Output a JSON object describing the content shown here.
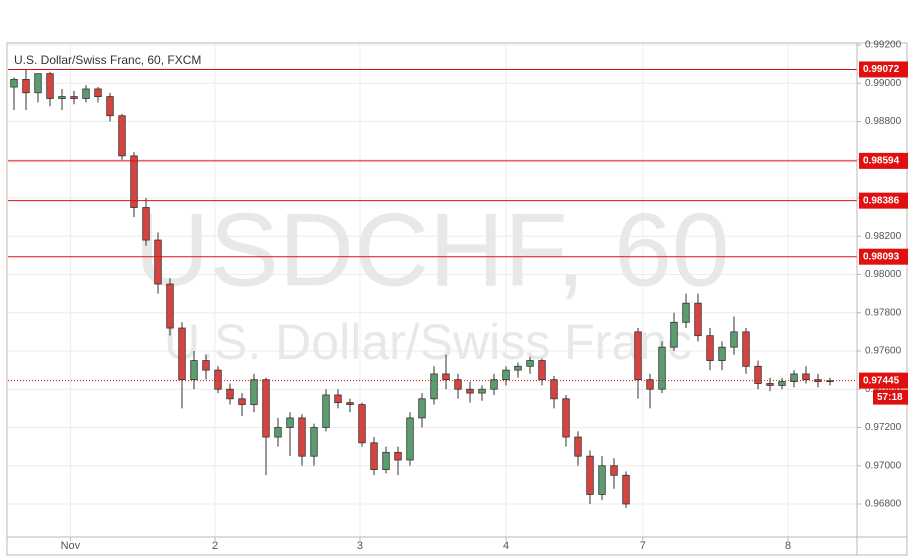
{
  "chart_data": {
    "type": "candlestick",
    "title": "U.S. Dollar/Swiss Franc, 60, FXCM",
    "watermark_symbol": "USDCHF, 60",
    "watermark_name": "U.S. Dollar/Swiss Franc",
    "up_color": "#5a9e70",
    "down_color": "#d9433f",
    "level_color": "#e01010",
    "grid": true,
    "ylim": [
      0.96617,
      0.99205
    ],
    "yticks": [
      {
        "value": 0.992,
        "label": "0.99200"
      },
      {
        "value": 0.99,
        "label": "0.99000"
      },
      {
        "value": 0.988,
        "label": "0.98800"
      },
      {
        "value": 0.986,
        "label": "0.98600"
      },
      {
        "value": 0.984,
        "label": "0.98400"
      },
      {
        "value": 0.982,
        "label": "0.98200"
      },
      {
        "value": 0.98,
        "label": "0.98000"
      },
      {
        "value": 0.978,
        "label": "0.97800"
      },
      {
        "value": 0.976,
        "label": "0.97600"
      },
      {
        "value": 0.974,
        "label": "0.97400"
      },
      {
        "value": 0.972,
        "label": "0.97200"
      },
      {
        "value": 0.97,
        "label": "0.97000"
      },
      {
        "value": 0.968,
        "label": "0.96800"
      }
    ],
    "xlim": [
      0,
      70.75
    ],
    "xticks": [
      {
        "value": 5.2,
        "label": "Nov"
      },
      {
        "value": 17.25,
        "label": "2"
      },
      {
        "value": 29.33,
        "label": "3"
      },
      {
        "value": 41.5,
        "label": "4"
      },
      {
        "value": 52.9,
        "label": "7"
      },
      {
        "value": 65,
        "label": "8"
      }
    ],
    "open": [
      0.9898,
      0.9902,
      0.9895,
      0.9905,
      0.9892,
      0.9893,
      0.9892,
      0.9897,
      0.9893,
      0.9883,
      0.9862,
      0.9835,
      0.9818,
      0.9795,
      0.9772,
      0.9745,
      0.9755,
      0.975,
      0.974,
      0.9735,
      0.9732,
      0.9745,
      0.9715,
      0.972,
      0.9725,
      0.9705,
      0.972,
      0.9737,
      0.9733,
      0.9732,
      0.9712,
      0.9698,
      0.9707,
      0.9703,
      0.9725,
      0.9735,
      0.9748,
      0.9745,
      0.974,
      0.9738,
      0.974,
      0.9745,
      0.975,
      0.9752,
      0.9755,
      0.9745,
      0.9735,
      0.9715,
      0.9705,
      0.9685,
      0.97,
      0.9695,
      0.977,
      0.9745,
      0.974,
      0.9762,
      0.9775,
      0.9785,
      0.9768,
      0.9755,
      0.9762,
      0.977,
      0.9752,
      0.9743,
      0.9742,
      0.9744,
      0.9748,
      0.9745,
      0.9744
    ],
    "high": [
      0.9903,
      0.9907,
      0.9905,
      0.9906,
      0.9897,
      0.9896,
      0.9899,
      0.9898,
      0.9895,
      0.9884,
      0.9864,
      0.984,
      0.9822,
      0.9798,
      0.9775,
      0.976,
      0.9758,
      0.9752,
      0.9743,
      0.9738,
      0.9748,
      0.9746,
      0.9725,
      0.9728,
      0.9727,
      0.9722,
      0.974,
      0.974,
      0.9735,
      0.9733,
      0.9715,
      0.971,
      0.971,
      0.9728,
      0.9738,
      0.9752,
      0.9758,
      0.9748,
      0.9744,
      0.9742,
      0.9748,
      0.9752,
      0.9754,
      0.9757,
      0.9756,
      0.9747,
      0.9737,
      0.9718,
      0.9708,
      0.9705,
      0.9704,
      0.9697,
      0.9772,
      0.9748,
      0.9765,
      0.978,
      0.979,
      0.979,
      0.9772,
      0.9765,
      0.9778,
      0.9772,
      0.9755,
      0.9746,
      0.9746,
      0.975,
      0.9752,
      0.9748,
      0.9746
    ],
    "low": [
      0.9886,
      0.9886,
      0.989,
      0.9888,
      0.9886,
      0.9889,
      0.989,
      0.989,
      0.988,
      0.986,
      0.983,
      0.9815,
      0.979,
      0.9768,
      0.973,
      0.974,
      0.9745,
      0.9738,
      0.9732,
      0.9726,
      0.9728,
      0.9695,
      0.971,
      0.9705,
      0.97,
      0.97,
      0.9718,
      0.973,
      0.9728,
      0.971,
      0.9695,
      0.9696,
      0.9695,
      0.97,
      0.972,
      0.9732,
      0.974,
      0.9735,
      0.9733,
      0.9734,
      0.9737,
      0.9742,
      0.9746,
      0.9748,
      0.9742,
      0.973,
      0.971,
      0.97,
      0.968,
      0.9682,
      0.9688,
      0.9678,
      0.9735,
      0.973,
      0.9738,
      0.976,
      0.9772,
      0.9765,
      0.975,
      0.975,
      0.9758,
      0.9748,
      0.974,
      0.9739,
      0.974,
      0.9741,
      0.9743,
      0.9741,
      0.9742
    ],
    "close": [
      0.9902,
      0.9895,
      0.9905,
      0.9892,
      0.9893,
      0.9892,
      0.9897,
      0.9893,
      0.9883,
      0.9862,
      0.9835,
      0.9818,
      0.9795,
      0.9772,
      0.9745,
      0.9755,
      0.975,
      0.974,
      0.9735,
      0.9732,
      0.9745,
      0.9715,
      0.972,
      0.9725,
      0.9705,
      0.972,
      0.9737,
      0.9733,
      0.9732,
      0.9712,
      0.9698,
      0.9707,
      0.9703,
      0.9725,
      0.9735,
      0.9748,
      0.9745,
      0.974,
      0.9738,
      0.974,
      0.9745,
      0.975,
      0.9752,
      0.9755,
      0.9745,
      0.9735,
      0.9715,
      0.9705,
      0.9685,
      0.97,
      0.9695,
      0.968,
      0.9745,
      0.974,
      0.9762,
      0.9775,
      0.9785,
      0.9768,
      0.9755,
      0.9762,
      0.977,
      0.9752,
      0.9743,
      0.9742,
      0.9744,
      0.9748,
      0.9745,
      0.9744,
      0.97445
    ],
    "levels": [
      0.99072,
      0.98594,
      0.98386,
      0.98093
    ],
    "current_price": 0.97445,
    "countdown": "57:18"
  }
}
